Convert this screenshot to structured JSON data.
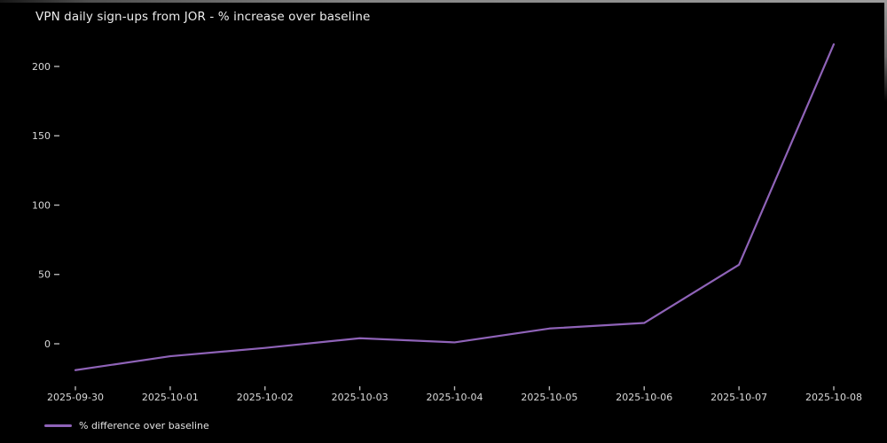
{
  "title": "VPN daily sign-ups from JOR - % increase over baseline",
  "colors": {
    "background": "#000000",
    "line": "#8f63b8",
    "tick": "#b5b5b5",
    "text": "#e3e3e3"
  },
  "legend": {
    "label": "% difference over baseline"
  },
  "chart_data": {
    "type": "line",
    "title": "VPN daily sign-ups from JOR - % increase over baseline",
    "x": [
      "2025-09-30",
      "2025-10-01",
      "2025-10-02",
      "2025-10-03",
      "2025-10-04",
      "2025-10-05",
      "2025-10-06",
      "2025-10-07",
      "2025-10-08"
    ],
    "series": [
      {
        "name": "% difference over baseline",
        "values": [
          -19,
          -9,
          -3,
          4,
          1,
          11,
          15,
          57,
          216
        ]
      }
    ],
    "xlabel": "",
    "ylabel": "",
    "yticks": [
      0,
      50,
      100,
      150,
      200
    ],
    "ylim": [
      -30,
      225
    ],
    "grid": false,
    "legend_position": "lower-left",
    "line_color": "#8f63b8",
    "background": "#000000"
  }
}
